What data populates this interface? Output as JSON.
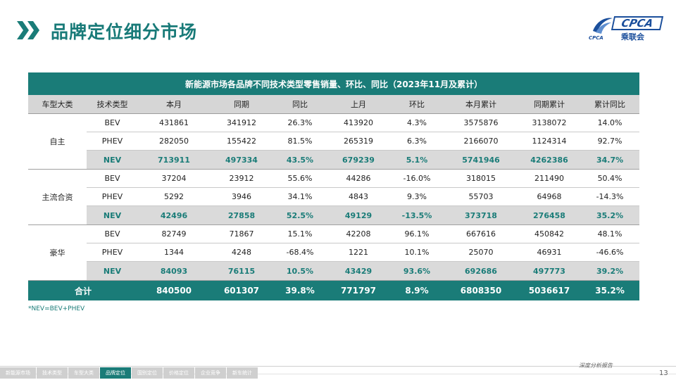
{
  "page": {
    "title": "品牌定位细分市场",
    "footnote": "*NEV=BEV+PHEV",
    "slogan": "深度分析报告",
    "page_number": "13"
  },
  "logo": {
    "brand": "CPCA",
    "cn": "乘联会",
    "small": "CPCA"
  },
  "colors": {
    "accent": "#1a7c78",
    "header_gray": "#d6d6d6",
    "logo_blue": "#1b4f9c"
  },
  "table": {
    "title": "新能源市场各品牌不同技术类型零售销量、环比、同比（2023年11月及累计）",
    "headers": [
      "车型大类",
      "技术类型",
      "本月",
      "同期",
      "同比",
      "上月",
      "环比",
      "本月累计",
      "同期累计",
      "累计同比"
    ],
    "groups": [
      {
        "name": "自主",
        "rows": [
          [
            "BEV",
            "431861",
            "341912",
            "26.3%",
            "413920",
            "4.3%",
            "3575876",
            "3138072",
            "14.0%"
          ],
          [
            "PHEV",
            "282050",
            "155422",
            "81.5%",
            "265319",
            "6.3%",
            "2166070",
            "1124314",
            "92.7%"
          ],
          [
            "NEV",
            "713911",
            "497334",
            "43.5%",
            "679239",
            "5.1%",
            "5741946",
            "4262386",
            "34.7%"
          ]
        ]
      },
      {
        "name": "主流合资",
        "rows": [
          [
            "BEV",
            "37204",
            "23912",
            "55.6%",
            "44286",
            "-16.0%",
            "318015",
            "211490",
            "50.4%"
          ],
          [
            "PHEV",
            "5292",
            "3946",
            "34.1%",
            "4843",
            "9.3%",
            "55703",
            "64968",
            "-14.3%"
          ],
          [
            "NEV",
            "42496",
            "27858",
            "52.5%",
            "49129",
            "-13.5%",
            "373718",
            "276458",
            "35.2%"
          ]
        ]
      },
      {
        "name": "豪华",
        "rows": [
          [
            "BEV",
            "82749",
            "71867",
            "15.1%",
            "42208",
            "96.1%",
            "667616",
            "450842",
            "48.1%"
          ],
          [
            "PHEV",
            "1344",
            "4248",
            "-68.4%",
            "1221",
            "10.1%",
            "25070",
            "46931",
            "-46.6%"
          ],
          [
            "NEV",
            "84093",
            "76115",
            "10.5%",
            "43429",
            "93.6%",
            "692686",
            "497773",
            "39.2%"
          ]
        ]
      }
    ],
    "total": [
      "合计",
      "840500",
      "601307",
      "39.8%",
      "771797",
      "8.9%",
      "6808350",
      "5036617",
      "35.2%"
    ]
  },
  "footer_nav": [
    {
      "label": "新能源市场",
      "active": false
    },
    {
      "label": "技术类型",
      "active": false
    },
    {
      "label": "车型大类",
      "active": false
    },
    {
      "label": "品牌定位",
      "active": true
    },
    {
      "label": "国别定位",
      "active": false
    },
    {
      "label": "价格定位",
      "active": false
    },
    {
      "label": "企业竞争",
      "active": false
    },
    {
      "label": "新车统计",
      "active": false
    }
  ]
}
